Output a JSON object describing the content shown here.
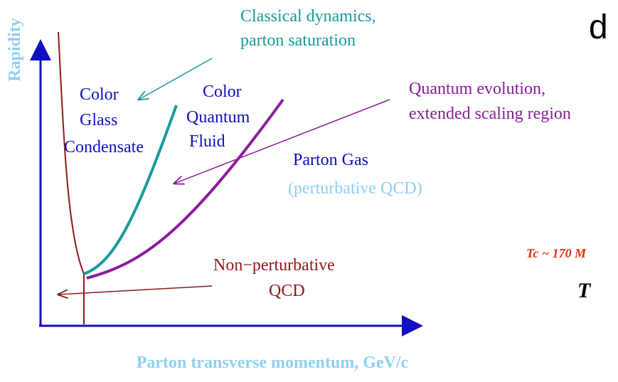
{
  "axes": {
    "y_label": "Rapidity",
    "x_label": "Parton transverse momentum, GeV/c"
  },
  "corner_letter": "d",
  "annotations": {
    "classical": [
      "Classical dynamics,",
      "parton saturation"
    ],
    "cgc": [
      "Color",
      "Glass",
      "Condensate"
    ],
    "cqf": [
      "Color",
      "Quantum",
      "Fluid"
    ],
    "quantum": [
      "Quantum evolution,",
      "extended scaling region"
    ],
    "parton_gas": "Parton Gas",
    "perturbative": "(perturbative QCD)",
    "nonpert": [
      "Non−perturbative",
      "QCD"
    ],
    "tc": "Tc ~ 170 M",
    "t": "T"
  }
}
